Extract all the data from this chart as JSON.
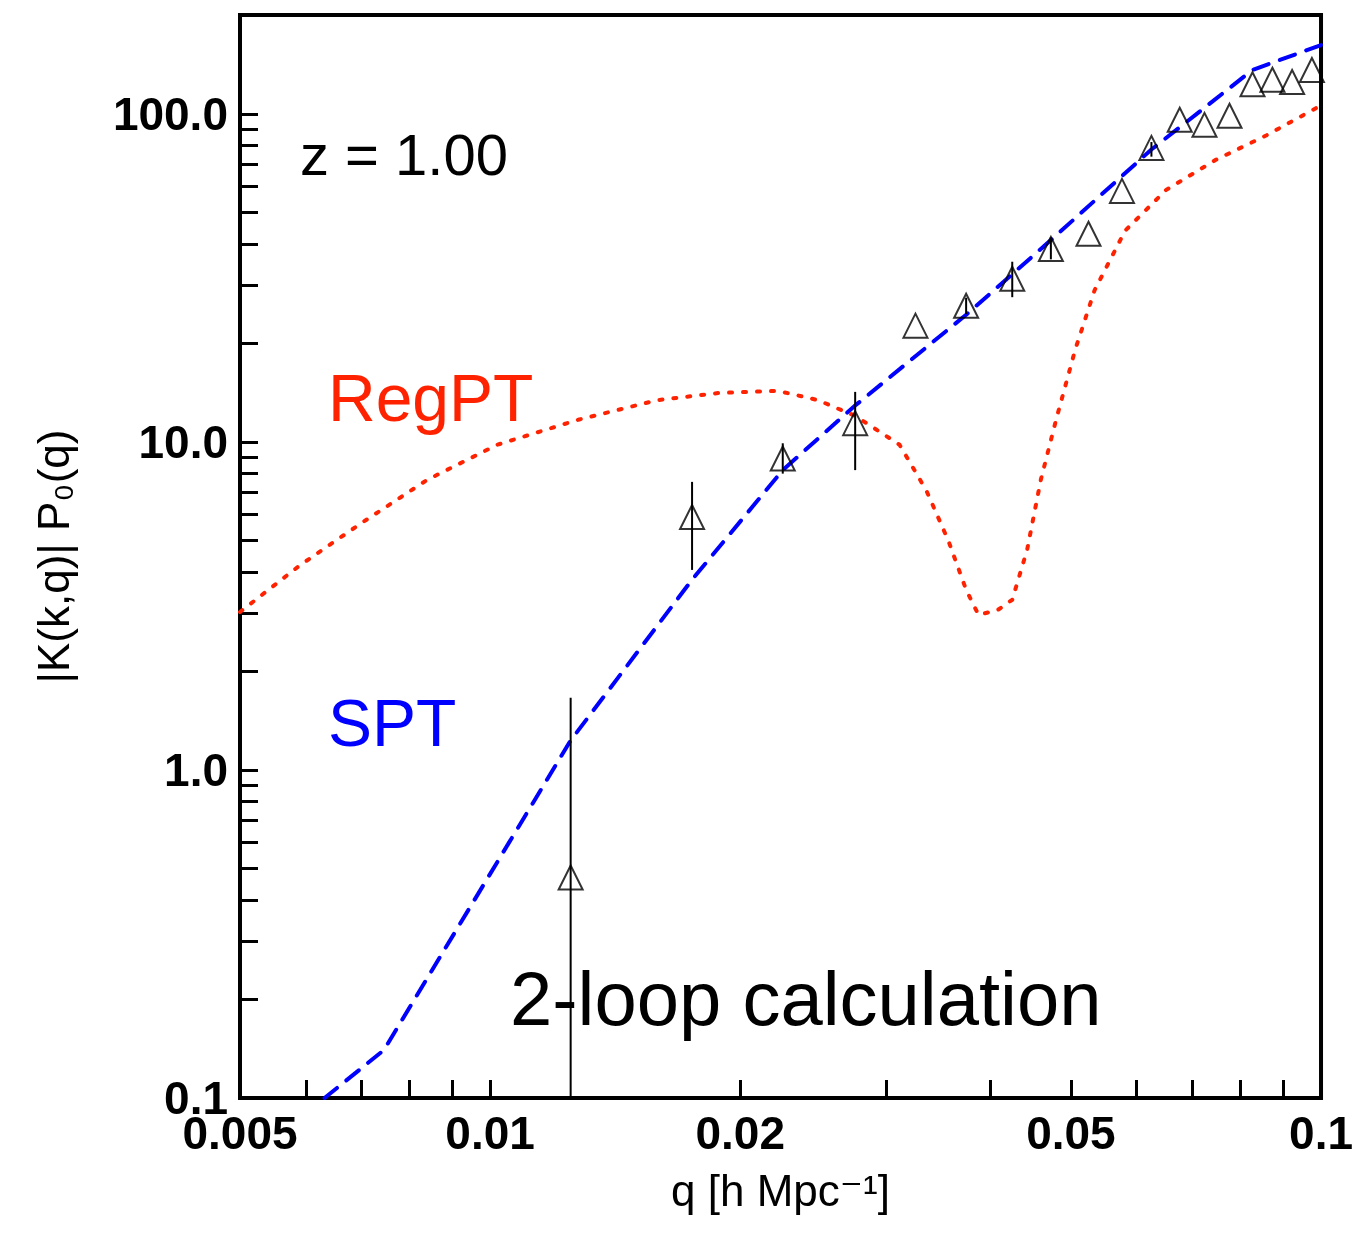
{
  "chart_data": {
    "type": "scatter",
    "xlabel": "q [h Mpc⁻¹]",
    "ylabel": "|K(k,q)| P₀(q)",
    "log": "xy",
    "grid": false,
    "legend": false,
    "xlim": [
      0.005,
      0.1
    ],
    "ylim": [
      0.1,
      200
    ],
    "xticks": [
      0.005,
      0.01,
      0.02,
      0.05,
      0.1
    ],
    "yticks": [
      0.1,
      {
        "value": 1,
        "label": "1.0"
      },
      {
        "value": 10,
        "label": "10.0"
      },
      {
        "value": 100,
        "label": "100.0"
      }
    ],
    "annotations": [
      "z = 1.00",
      "2-loop calculation"
    ],
    "series": [
      {
        "marker": "triangle",
        "color": "#000000",
        "x": [
          0.0125,
          0.0175,
          0.0225,
          0.0275,
          0.0325,
          0.0374,
          0.0425,
          0.0473,
          0.0525,
          0.0576,
          0.0625,
          0.0676,
          0.0724,
          0.0776,
          0.0827,
          0.0874,
          0.0923,
          0.0975
        ],
        "values": [
          0.47,
          5.9,
          8.9,
          11.4,
          22.6,
          26,
          31.4,
          38.7,
          43.1,
          58.2,
          78.7,
          95.9,
          92.5,
          98.6,
          123,
          127,
          125,
          136
        ],
        "errors": [
          [
            0.1,
            1.66
          ],
          [
            4.07,
            7.55
          ],
          [
            8,
            9.9
          ],
          [
            8.2,
            14.2
          ],
          null,
          [
            24.5,
            27.5
          ],
          [
            27.6,
            35.4
          ],
          [
            36,
            42
          ],
          null,
          null,
          [
            74,
            82
          ],
          null,
          null,
          null,
          null,
          null,
          null,
          null
        ]
      },
      {
        "type": "line",
        "name": "SPT",
        "color": "#0000ff",
        "line_style": "dashed",
        "marker": "none",
        "x": [
          0.00632,
          0.00745,
          0.0125,
          0.0175,
          0.0225,
          0.0275,
          0.0374,
          0.0473,
          0.0625,
          0.0827,
          0.1
        ],
        "values": [
          0.1,
          0.14,
          1.23,
          3.8,
          8.2,
          12.9,
          24.4,
          41.2,
          77.8,
          136,
          162
        ]
      },
      {
        "type": "line",
        "name": "RegPT",
        "color": "#ff2200",
        "line_style": "dotted",
        "marker": "none",
        "x": [
          0.005,
          0.0059,
          0.00696,
          0.0084,
          0.0102,
          0.0128,
          0.0159,
          0.0189,
          0.0222,
          0.0248,
          0.0275,
          0.0311,
          0.0335,
          0.0356,
          0.0374,
          0.0387,
          0.0408,
          0.0425,
          0.0443,
          0.046,
          0.048,
          0.0506,
          0.0534,
          0.0581,
          0.0651,
          0.0748,
          0.086,
          0.0986
        ],
        "values": [
          3.03,
          4.2,
          5.6,
          7.66,
          9.8,
          11.7,
          13.4,
          14.1,
          14.3,
          13.4,
          12,
          9.8,
          7.1,
          5,
          3.54,
          2.97,
          3.07,
          3.3,
          4.7,
          7.66,
          11.7,
          19.1,
          29,
          44,
          58.6,
          72.5,
          86,
          104
        ]
      }
    ]
  }
}
